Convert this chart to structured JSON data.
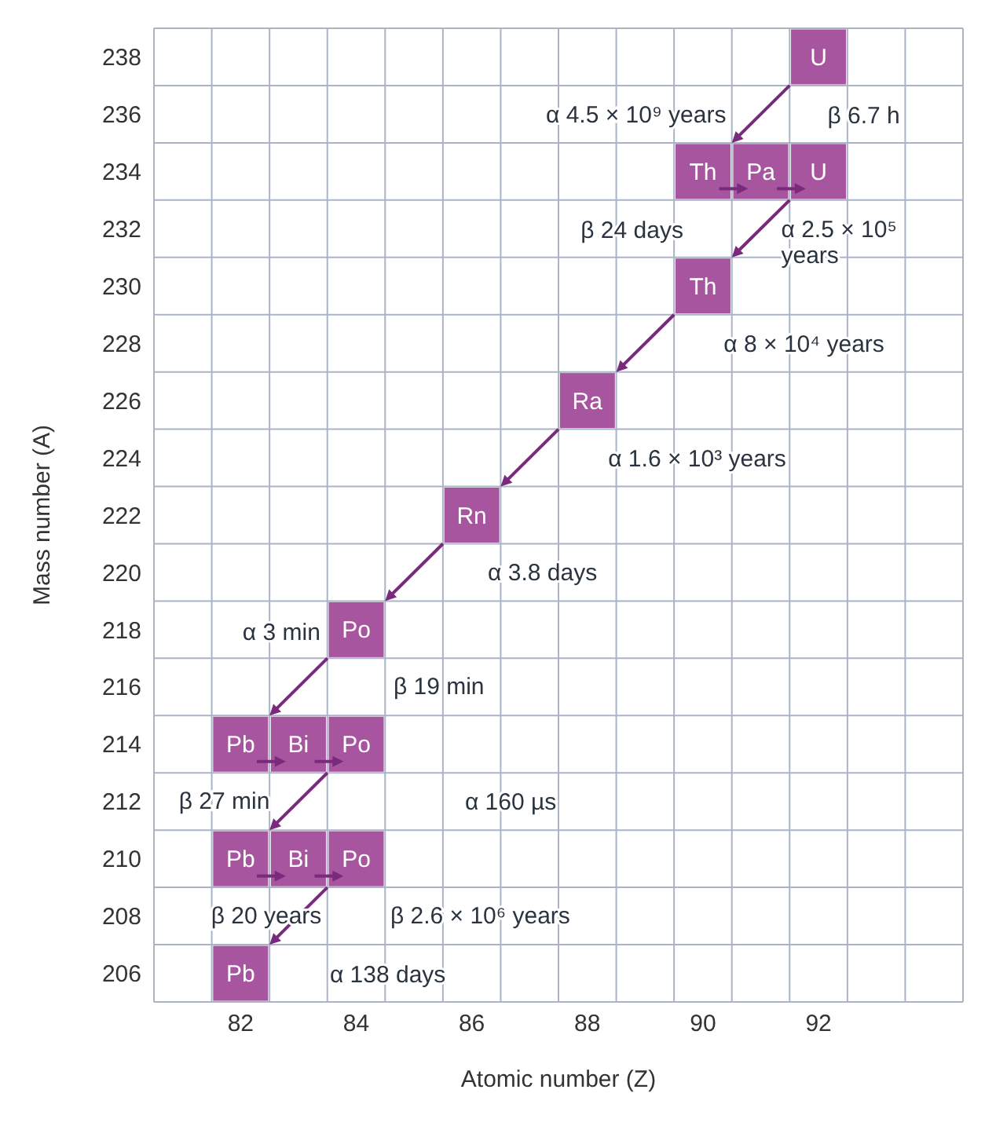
{
  "chart_data": {
    "type": "scatter",
    "xlabel": "Atomic number (Z)",
    "ylabel": "Mass number (A)",
    "marker": "square",
    "grid": true,
    "xlim": [
      80.5,
      94.5
    ],
    "ylim": [
      205,
      239
    ],
    "xticks": [
      {
        "value": 80.5,
        "label": null
      },
      {
        "value": 81.5,
        "label": null
      },
      82,
      {
        "value": 82.5,
        "label": null
      },
      {
        "value": 83.5,
        "label": null
      },
      84,
      {
        "value": 84.5,
        "label": null
      },
      {
        "value": 85.5,
        "label": null
      },
      86,
      {
        "value": 86.5,
        "label": null
      },
      {
        "value": 87.5,
        "label": null
      },
      88,
      {
        "value": 88.5,
        "label": null
      },
      {
        "value": 89.5,
        "label": null
      },
      90,
      {
        "value": 90.5,
        "label": null
      },
      {
        "value": 91.5,
        "label": null
      },
      92,
      {
        "value": 92.5,
        "label": null
      },
      {
        "value": 93.5,
        "label": null
      },
      {
        "value": 94.5,
        "label": null
      }
    ],
    "yticks": [
      {
        "value": 205,
        "label": null
      },
      206,
      {
        "value": 207,
        "label": null
      },
      208,
      {
        "value": 209,
        "label": null
      },
      210,
      {
        "value": 211,
        "label": null
      },
      212,
      {
        "value": 213,
        "label": null
      },
      214,
      {
        "value": 215,
        "label": null
      },
      216,
      {
        "value": 217,
        "label": null
      },
      218,
      {
        "value": 219,
        "label": null
      },
      220,
      {
        "value": 221,
        "label": null
      },
      222,
      {
        "value": 223,
        "label": null
      },
      224,
      {
        "value": 225,
        "label": null
      },
      226,
      {
        "value": 227,
        "label": null
      },
      228,
      {
        "value": 229,
        "label": null
      },
      230,
      {
        "value": 231,
        "label": null
      },
      232,
      {
        "value": 233,
        "label": null
      },
      234,
      {
        "value": 235,
        "label": null
      },
      236,
      {
        "value": 237,
        "label": null
      },
      238,
      {
        "value": 239,
        "label": null
      }
    ],
    "series": [
      {
        "color": "#a8559f",
        "x": [
          92,
          90,
          91,
          92,
          90,
          88,
          86,
          84,
          82,
          83,
          84,
          82,
          83,
          84,
          82
        ],
        "values": [
          238,
          234,
          234,
          234,
          230,
          226,
          222,
          218,
          214,
          214,
          214,
          210,
          210,
          210,
          206
        ],
        "value_labels": [
          "U",
          "Th",
          "Pa",
          "U",
          "Th",
          "Ra",
          "Rn",
          "Po",
          "Pb",
          "Bi",
          "Po",
          "Pb",
          "Bi",
          "Po",
          "Pb"
        ]
      }
    ],
    "annotations": [
      "α 4.5 × 10⁹ years",
      "β 24 days",
      "β 6.7 h",
      "α 2.5 × 10⁵ years",
      "α 8 × 10⁴ years",
      "α 1.6 × 10³ years",
      "α 3.8 days",
      "α 3 min",
      "β 27 min",
      "β 19 min",
      "α 160 µs",
      "β 20 years",
      "β 2.6 × 10⁶ years",
      "α 138 days"
    ]
  }
}
